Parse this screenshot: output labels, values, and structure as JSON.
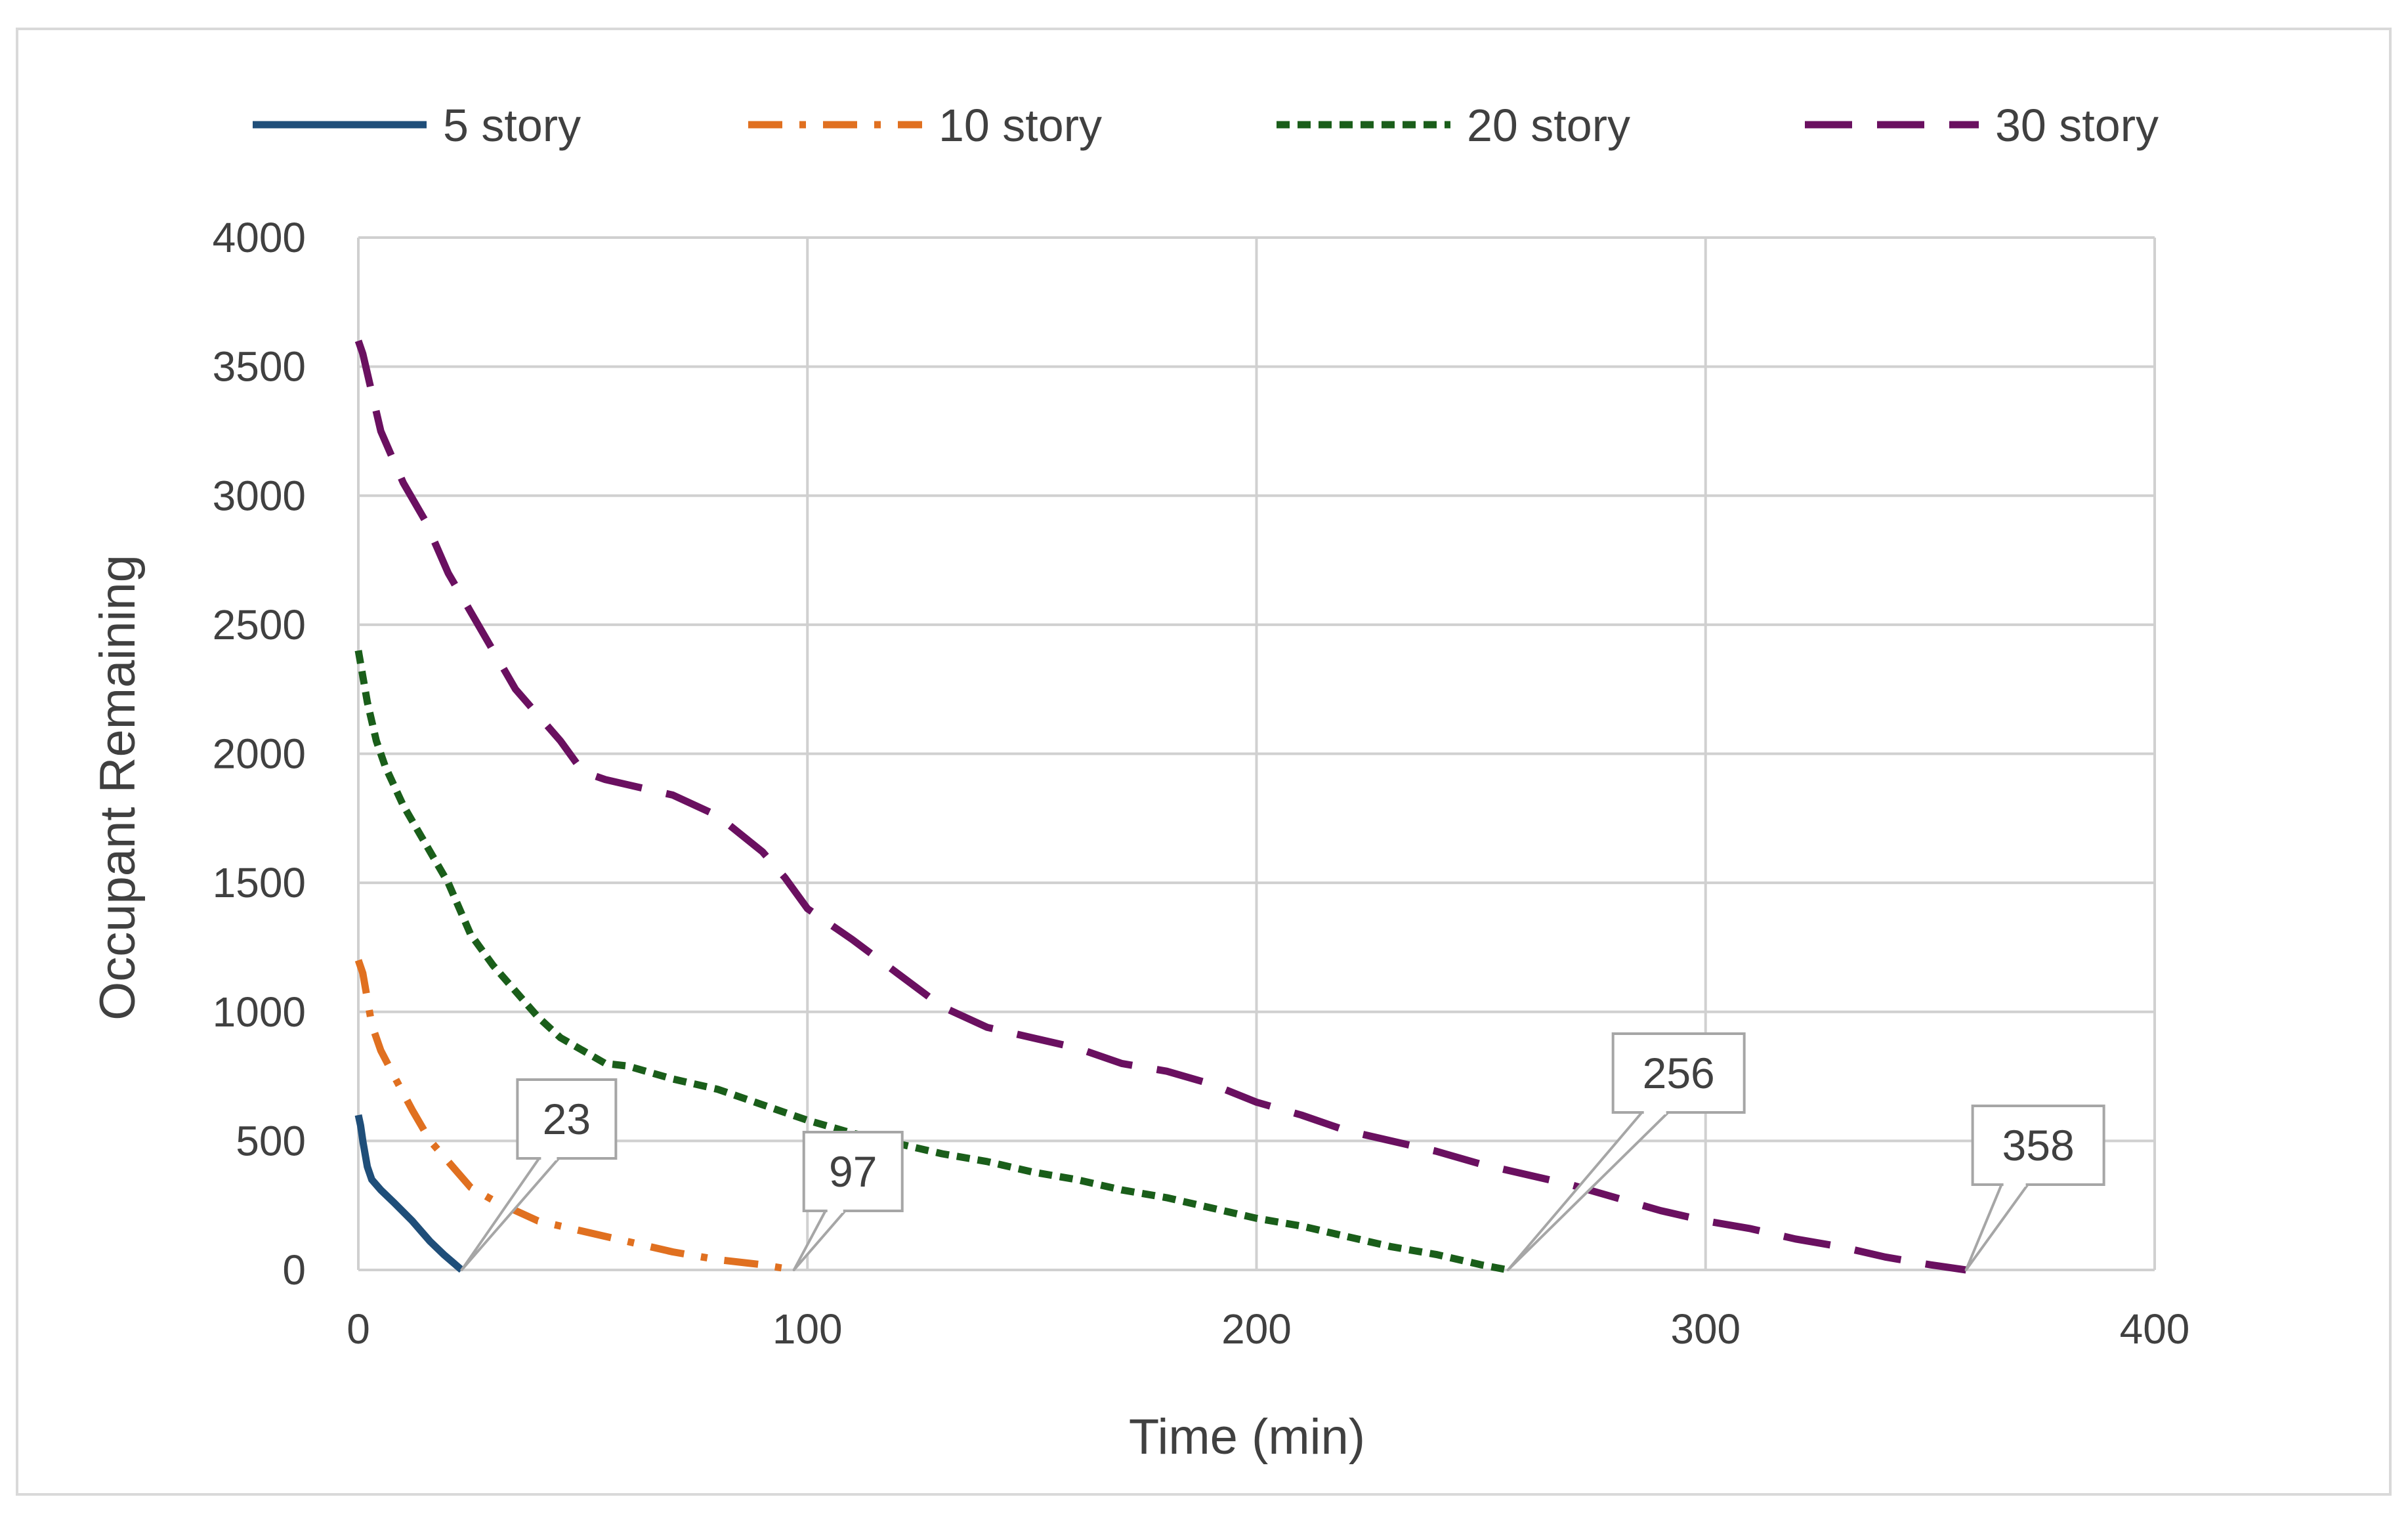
{
  "chart_data": {
    "type": "line",
    "title": "",
    "xlabel": "Time (min)",
    "ylabel": "Occupant Remaining",
    "xlim": [
      0,
      400
    ],
    "ylim": [
      0,
      4000
    ],
    "x_ticks": [
      0,
      100,
      200,
      300,
      400
    ],
    "y_ticks": [
      0,
      500,
      1000,
      1500,
      2000,
      2500,
      3000,
      3500,
      4000
    ],
    "grid": true,
    "legend_position": "top",
    "series": [
      {
        "name": "5 story",
        "color": "#1f4e79",
        "dash": "solid",
        "points": [
          [
            0,
            600
          ],
          [
            0.5,
            560
          ],
          [
            1,
            500
          ],
          [
            2,
            400
          ],
          [
            3,
            350
          ],
          [
            5,
            310
          ],
          [
            8,
            260
          ],
          [
            12,
            190
          ],
          [
            16,
            110
          ],
          [
            19,
            60
          ],
          [
            21,
            30
          ],
          [
            23,
            0
          ]
        ]
      },
      {
        "name": "10 story",
        "color": "#e07020",
        "dash": "dashdot",
        "points": [
          [
            0,
            1200
          ],
          [
            1,
            1150
          ],
          [
            2,
            1050
          ],
          [
            3,
            950
          ],
          [
            5,
            850
          ],
          [
            8,
            750
          ],
          [
            12,
            620
          ],
          [
            16,
            500
          ],
          [
            20,
            420
          ],
          [
            25,
            320
          ],
          [
            30,
            270
          ],
          [
            35,
            230
          ],
          [
            40,
            190
          ],
          [
            50,
            150
          ],
          [
            60,
            110
          ],
          [
            70,
            70
          ],
          [
            80,
            40
          ],
          [
            90,
            20
          ],
          [
            97,
            0
          ]
        ]
      },
      {
        "name": "20 story",
        "color": "#1a5e1a",
        "dash": "dashed",
        "points": [
          [
            0,
            2400
          ],
          [
            1,
            2300
          ],
          [
            2,
            2200
          ],
          [
            4,
            2050
          ],
          [
            6,
            1950
          ],
          [
            10,
            1800
          ],
          [
            15,
            1650
          ],
          [
            20,
            1500
          ],
          [
            25,
            1300
          ],
          [
            30,
            1180
          ],
          [
            35,
            1080
          ],
          [
            40,
            980
          ],
          [
            45,
            900
          ],
          [
            50,
            850
          ],
          [
            55,
            800
          ],
          [
            60,
            790
          ],
          [
            70,
            740
          ],
          [
            80,
            700
          ],
          [
            90,
            640
          ],
          [
            100,
            580
          ],
          [
            110,
            530
          ],
          [
            120,
            490
          ],
          [
            130,
            450
          ],
          [
            140,
            420
          ],
          [
            150,
            380
          ],
          [
            160,
            350
          ],
          [
            170,
            310
          ],
          [
            180,
            280
          ],
          [
            190,
            240
          ],
          [
            200,
            200
          ],
          [
            210,
            170
          ],
          [
            220,
            130
          ],
          [
            230,
            90
          ],
          [
            240,
            60
          ],
          [
            250,
            20
          ],
          [
            256,
            0
          ]
        ]
      },
      {
        "name": "30 story",
        "color": "#6a1060",
        "dash": "longdash",
        "points": [
          [
            0,
            3600
          ],
          [
            1,
            3550
          ],
          [
            3,
            3400
          ],
          [
            5,
            3250
          ],
          [
            10,
            3050
          ],
          [
            15,
            2900
          ],
          [
            20,
            2700
          ],
          [
            25,
            2550
          ],
          [
            30,
            2400
          ],
          [
            35,
            2250
          ],
          [
            40,
            2150
          ],
          [
            45,
            2050
          ],
          [
            50,
            1930
          ],
          [
            55,
            1900
          ],
          [
            60,
            1880
          ],
          [
            70,
            1840
          ],
          [
            80,
            1760
          ],
          [
            90,
            1620
          ],
          [
            95,
            1520
          ],
          [
            100,
            1400
          ],
          [
            110,
            1280
          ],
          [
            120,
            1150
          ],
          [
            130,
            1020
          ],
          [
            140,
            940
          ],
          [
            150,
            900
          ],
          [
            160,
            860
          ],
          [
            170,
            800
          ],
          [
            180,
            770
          ],
          [
            190,
            720
          ],
          [
            200,
            650
          ],
          [
            210,
            600
          ],
          [
            220,
            540
          ],
          [
            230,
            500
          ],
          [
            240,
            460
          ],
          [
            250,
            410
          ],
          [
            260,
            370
          ],
          [
            270,
            330
          ],
          [
            280,
            280
          ],
          [
            290,
            230
          ],
          [
            300,
            190
          ],
          [
            310,
            160
          ],
          [
            320,
            120
          ],
          [
            330,
            90
          ],
          [
            340,
            50
          ],
          [
            350,
            20
          ],
          [
            358,
            0
          ]
        ]
      }
    ],
    "annotations": [
      {
        "text": "23",
        "x": 23,
        "y": 0
      },
      {
        "text": "97",
        "x": 97,
        "y": 0
      },
      {
        "text": "256",
        "x": 256,
        "y": 0
      },
      {
        "text": "358",
        "x": 358,
        "y": 0
      }
    ]
  }
}
